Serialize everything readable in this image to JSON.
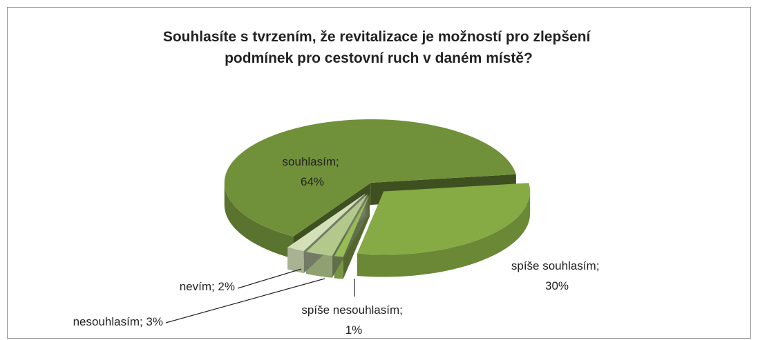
{
  "chart_data": {
    "type": "pie3d",
    "title": "Souhlasíte s tvrzením, že revitalizace je možností pro zlepšení podmínek pro cestovní ruch v daném místě?",
    "values": [
      64,
      30,
      1,
      3,
      2
    ],
    "value_labels": [
      "souhlasím; 64%",
      "spíše souhlasím; 30%",
      "spíše nesouhlasím; 1%",
      "nesouhlasím; 3%",
      "nevím; 2%"
    ],
    "colors": [
      "#71903a",
      "#86aa44",
      "#97bb55",
      "#b3c98c",
      "#d3e0b8"
    ]
  }
}
